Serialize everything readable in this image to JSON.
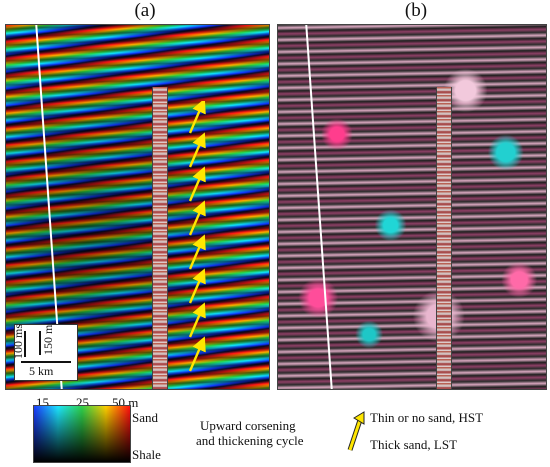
{
  "panels": [
    {
      "label": "(a)"
    },
    {
      "label": "(b)"
    }
  ],
  "scale": {
    "time": "100 ms",
    "depth": "150 m",
    "distance": "5 km"
  },
  "colorbar": {
    "ticks": [
      "15",
      "25",
      "50 m"
    ],
    "top_label": "Sand",
    "bottom_label": "Shale",
    "gradient": [
      "#1b3cff",
      "#1ee6ff",
      "#2fd14b",
      "#ffcf00",
      "#ff1010"
    ]
  },
  "legend": {
    "cycle_label_line1": "Upward corsening",
    "cycle_label_line2": "and thickening cycle",
    "thin_label": "Thin or no sand, HST",
    "thick_label": "Thick sand, LST",
    "arrow_color": "#ffe600"
  }
}
